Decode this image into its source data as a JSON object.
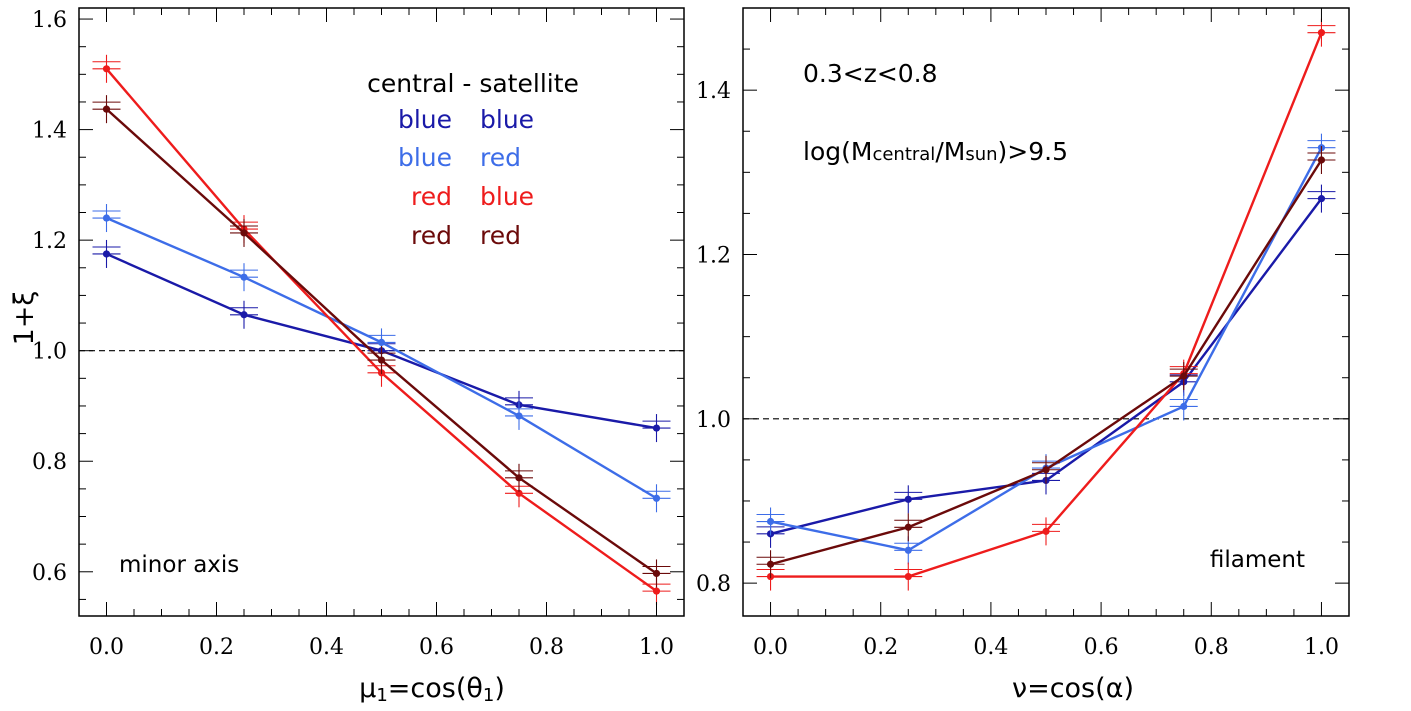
{
  "chart_data": [
    {
      "type": "line",
      "xlabel_main": "μ",
      "xlabel_sub": "1",
      "xlabel_rest": "=cos(θ",
      "xlabel_sub2": "1",
      "xlabel_end": ")",
      "ylabel": "1+ξ",
      "xlim": [
        -0.05,
        1.05
      ],
      "ylim": [
        0.52,
        1.62
      ],
      "xticks": [
        "0.0",
        "0.2",
        "0.4",
        "0.6",
        "0.8",
        "1.0"
      ],
      "xtick_values": [
        0.0,
        0.2,
        0.4,
        0.6,
        0.8,
        1.0
      ],
      "yticks": [
        "0.6",
        "0.8",
        "1.0",
        "1.2",
        "1.4",
        "1.6"
      ],
      "ytick_values": [
        0.6,
        0.8,
        1.0,
        1.2,
        1.4,
        1.6
      ],
      "reference_line": 1.0,
      "annotation": "minor axis",
      "x": [
        0.0,
        0.25,
        0.5,
        0.75,
        1.0
      ],
      "series": [
        {
          "name": "blue - blue",
          "color": "#1a1aa8",
          "values": [
            1.175,
            1.065,
            1.0,
            0.902,
            0.86
          ]
        },
        {
          "name": "blue - red",
          "color": "#3d6de8",
          "values": [
            1.24,
            1.133,
            1.015,
            0.882,
            0.733
          ]
        },
        {
          "name": "red - blue",
          "color": "#ee1c1c",
          "values": [
            1.51,
            1.22,
            0.96,
            0.742,
            0.565
          ]
        },
        {
          "name": "red - red",
          "color": "#6b0a0a",
          "values": [
            1.437,
            1.213,
            0.983,
            0.77,
            0.597
          ]
        }
      ]
    },
    {
      "type": "line",
      "xlabel": "ν=cos(α)",
      "xlim": [
        -0.05,
        1.05
      ],
      "ylim": [
        0.76,
        1.5
      ],
      "xticks": [
        "0.0",
        "0.2",
        "0.4",
        "0.6",
        "0.8",
        "1.0"
      ],
      "xtick_values": [
        0.0,
        0.2,
        0.4,
        0.6,
        0.8,
        1.0
      ],
      "yticks": [
        "0.8",
        "1.0",
        "1.2",
        "1.4"
      ],
      "ytick_values": [
        0.8,
        1.0,
        1.2,
        1.4
      ],
      "reference_line": 1.0,
      "annotation": "filament",
      "x": [
        0.0,
        0.25,
        0.5,
        0.75,
        1.0
      ],
      "series": [
        {
          "name": "blue - blue",
          "color": "#1a1aa8",
          "values": [
            0.86,
            0.902,
            0.925,
            1.045,
            1.268
          ]
        },
        {
          "name": "blue - red",
          "color": "#3d6de8",
          "values": [
            0.875,
            0.84,
            0.94,
            1.015,
            1.33
          ]
        },
        {
          "name": "red - blue",
          "color": "#ee1c1c",
          "values": [
            0.808,
            0.808,
            0.863,
            1.055,
            1.47
          ]
        },
        {
          "name": "red - red",
          "color": "#6b0a0a",
          "values": [
            0.823,
            0.868,
            0.938,
            1.052,
            1.315
          ]
        }
      ]
    }
  ],
  "legend": {
    "header": "central  -  satellite",
    "rows": [
      {
        "central": "blue",
        "satellite": "blue",
        "color_central": "#1a1aa8",
        "color_satellite": "#1a1aa8"
      },
      {
        "central": "blue",
        "satellite": "red",
        "color_central": "#3d6de8",
        "color_satellite": "#3d6de8"
      },
      {
        "central": "red",
        "satellite": "blue",
        "color_central": "#ee1c1c",
        "color_satellite": "#ee1c1c"
      },
      {
        "central": "red",
        "satellite": "red",
        "color_central": "#6b0a0a",
        "color_satellite": "#6b0a0a"
      }
    ]
  },
  "right_notes": {
    "redshift": "0.3<z<0.8",
    "mass_prefix": "log(M",
    "mass_sub1": "central",
    "mass_mid": "/M",
    "mass_sub2": "sun",
    "mass_suffix": ")>9.5"
  }
}
